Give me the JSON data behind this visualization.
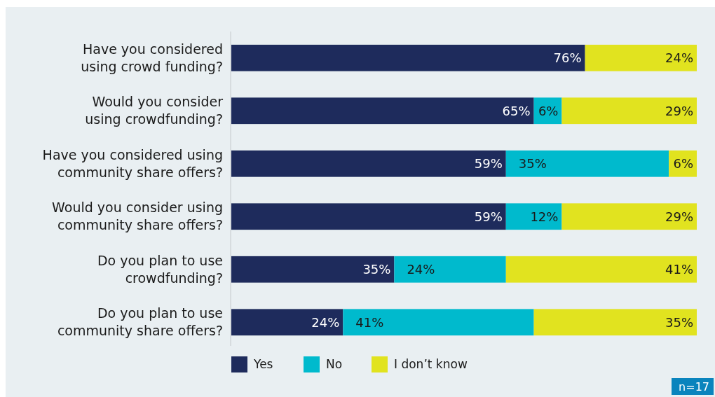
{
  "chart_data": {
    "type": "bar",
    "orientation": "horizontal",
    "stacked": true,
    "legend": "bottom",
    "categories": [
      "Have you considered\nusing crowd funding?",
      "Would you consider\nusing crowdfunding?",
      "Have you considered using\ncommunity share offers?",
      "Would you consider using\ncommunity share offers?",
      "Do you plan to use\ncrowdfunding?",
      "Do you plan to use\ncommunity share offers?"
    ],
    "series": [
      {
        "name": "Yes",
        "color": "#1e2b5c",
        "values": [
          76,
          65,
          59,
          59,
          35,
          24
        ],
        "value_labels": [
          "76%",
          "65%",
          "59%",
          "59%",
          "35%",
          "24%"
        ]
      },
      {
        "name": "No",
        "color": "#00bacd",
        "values": [
          null,
          6,
          35,
          12,
          24,
          41
        ],
        "value_labels": [
          null,
          "6%",
          "35%",
          "12%",
          "24%",
          "41%"
        ]
      },
      {
        "name": "I don’t know",
        "color": "#e1e31f",
        "values": [
          24,
          29,
          6,
          29,
          41,
          35
        ],
        "value_labels": [
          "24%",
          "29%",
          "6%",
          "29%",
          "41%",
          "35%"
        ]
      }
    ],
    "annotations": [
      "n=17"
    ]
  }
}
